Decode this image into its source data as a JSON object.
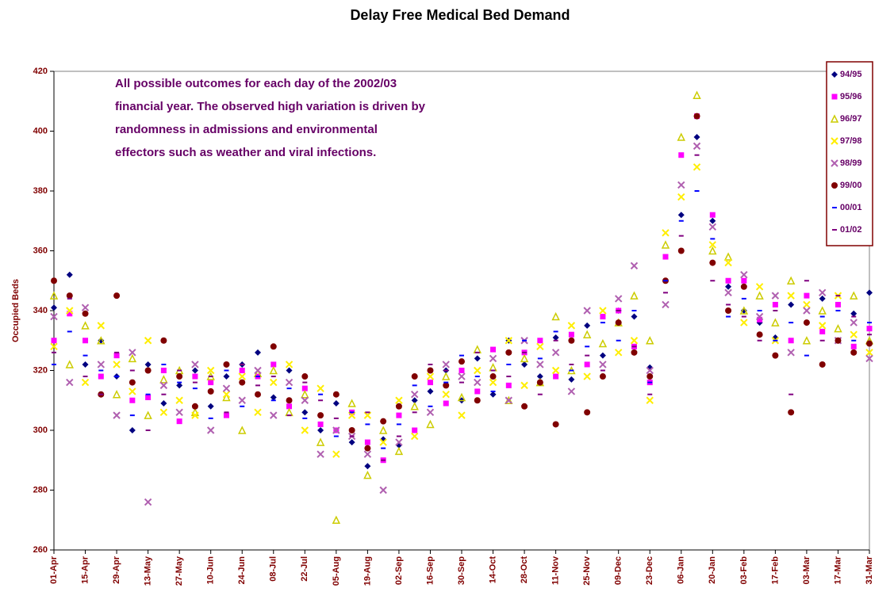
{
  "chart_data": {
    "type": "scatter",
    "title": "Delay Free Medical Bed Demand",
    "y_label": "Occupied Beds",
    "annotation": [
      "All possible outcomes for each day of the 2002/03",
      "financial year. The observed high variation is driven by",
      "randomness in admissions and environmental",
      "effectors such as weather and viral infections."
    ],
    "x": [
      0,
      7,
      14,
      21,
      28,
      35,
      42,
      49,
      56,
      63,
      70,
      77,
      84,
      91,
      98,
      105,
      112,
      119,
      126,
      133,
      140,
      147,
      154,
      161,
      168,
      175,
      182,
      189,
      196,
      203,
      210,
      217,
      224,
      231,
      238,
      245,
      252,
      259,
      266,
      273,
      280,
      287,
      294,
      301,
      308,
      315,
      322,
      329,
      336,
      343,
      350,
      357,
      364
    ],
    "xlim": [
      0,
      364
    ],
    "xticks": [
      {
        "value": 0,
        "label": "01-Apr"
      },
      {
        "value": 14,
        "label": "15-Apr"
      },
      {
        "value": 28,
        "label": "29-Apr"
      },
      {
        "value": 42,
        "label": "13-May"
      },
      {
        "value": 56,
        "label": "27-May"
      },
      {
        "value": 70,
        "label": "10-Jun"
      },
      {
        "value": 84,
        "label": "24-Jun"
      },
      {
        "value": 98,
        "label": "08-Jul"
      },
      {
        "value": 112,
        "label": "22-Jul"
      },
      {
        "value": 126,
        "label": "05-Aug"
      },
      {
        "value": 140,
        "label": "19-Aug"
      },
      {
        "value": 154,
        "label": "02-Sep"
      },
      {
        "value": 168,
        "label": "16-Sep"
      },
      {
        "value": 182,
        "label": "30-Sep"
      },
      {
        "value": 196,
        "label": "14-Oct"
      },
      {
        "value": 210,
        "label": "28-Oct"
      },
      {
        "value": 224,
        "label": "11-Nov"
      },
      {
        "value": 238,
        "label": "25-Nov"
      },
      {
        "value": 252,
        "label": "09-Dec"
      },
      {
        "value": 266,
        "label": "23-Dec"
      },
      {
        "value": 280,
        "label": "06-Jan"
      },
      {
        "value": 294,
        "label": "20-Jan"
      },
      {
        "value": 308,
        "label": "03-Feb"
      },
      {
        "value": 322,
        "label": "17-Feb"
      },
      {
        "value": 336,
        "label": "03-Mar"
      },
      {
        "value": 350,
        "label": "17-Mar"
      },
      {
        "value": 364,
        "label": "31-Mar"
      }
    ],
    "ylim": [
      260,
      420
    ],
    "yticks": [
      260,
      280,
      300,
      320,
      340,
      360,
      380,
      400,
      420
    ],
    "grid": false,
    "legend": "right",
    "series": [
      {
        "name": "94/95",
        "color": "#000080",
        "marker": "diamond",
        "values": [
          341,
          352,
          322,
          330,
          318,
          300,
          322,
          309,
          315,
          320,
          308,
          318,
          322,
          326,
          311,
          320,
          306,
          300,
          309,
          296,
          288,
          297,
          295,
          310,
          313,
          320,
          310,
          324,
          312,
          330,
          322,
          318,
          331,
          317,
          335,
          325,
          340,
          338,
          321,
          350,
          372,
          398,
          370,
          348,
          340,
          336,
          331,
          342,
          336,
          344,
          330,
          339,
          346
        ]
      },
      {
        "name": "95/96",
        "color": "#ff00ff",
        "marker": "square",
        "values": [
          330,
          339,
          330,
          318,
          325,
          310,
          311,
          320,
          303,
          318,
          316,
          305,
          320,
          318,
          322,
          308,
          314,
          302,
          300,
          306,
          296,
          290,
          305,
          300,
          316,
          309,
          320,
          313,
          327,
          315,
          326,
          330,
          318,
          332,
          322,
          338,
          340,
          328,
          316,
          358,
          392,
          405,
          372,
          350,
          350,
          337,
          342,
          330,
          345,
          333,
          342,
          328,
          334
        ]
      },
      {
        "name": "96/97",
        "color": "#cccc00",
        "marker": "triangle",
        "values": [
          345,
          322,
          335,
          330,
          312,
          324,
          305,
          317,
          320,
          306,
          318,
          311,
          300,
          319,
          320,
          306,
          312,
          296,
          270,
          309,
          285,
          300,
          293,
          308,
          302,
          318,
          311,
          327,
          321,
          310,
          324,
          316,
          338,
          320,
          332,
          329,
          336,
          345,
          330,
          362,
          398,
          412,
          360,
          358,
          340,
          345,
          336,
          350,
          330,
          340,
          334,
          345,
          330
        ]
      },
      {
        "name": "97/98",
        "color": "#ffee00",
        "marker": "x",
        "values": [
          328,
          340,
          316,
          335,
          322,
          313,
          330,
          306,
          310,
          305,
          320,
          312,
          318,
          306,
          316,
          322,
          300,
          314,
          292,
          305,
          305,
          296,
          310,
          298,
          318,
          312,
          305,
          320,
          316,
          330,
          315,
          328,
          320,
          335,
          318,
          340,
          326,
          330,
          310,
          366,
          378,
          388,
          362,
          356,
          336,
          348,
          330,
          345,
          342,
          335,
          345,
          332,
          326
        ]
      },
      {
        "name": "98/99",
        "color": "#b060b0",
        "marker": "x",
        "values": [
          338,
          316,
          341,
          322,
          305,
          326,
          276,
          315,
          306,
          322,
          300,
          314,
          310,
          320,
          305,
          316,
          310,
          292,
          300,
          298,
          292,
          280,
          296,
          312,
          306,
          322,
          318,
          316,
          324,
          310,
          330,
          322,
          326,
          313,
          340,
          322,
          344,
          355,
          320,
          342,
          382,
          395,
          368,
          346,
          352,
          338,
          345,
          326,
          340,
          346,
          330,
          336,
          324
        ]
      },
      {
        "name": "99/00",
        "color": "#800000",
        "marker": "circle",
        "values": [
          350,
          345,
          339,
          312,
          345,
          316,
          320,
          330,
          318,
          308,
          313,
          322,
          316,
          312,
          328,
          310,
          318,
          305,
          312,
          300,
          294,
          303,
          308,
          318,
          320,
          315,
          323,
          310,
          318,
          326,
          308,
          316,
          302,
          330,
          306,
          318,
          336,
          326,
          318,
          350,
          360,
          405,
          356,
          340,
          348,
          332,
          325,
          306,
          336,
          322,
          330,
          326,
          329
        ]
      },
      {
        "name": "00/01",
        "color": "#0000ff",
        "marker": "dash",
        "values": [
          322,
          333,
          325,
          320,
          318,
          305,
          312,
          322,
          316,
          314,
          304,
          320,
          308,
          318,
          310,
          314,
          304,
          312,
          298,
          306,
          302,
          294,
          302,
          315,
          308,
          316,
          325,
          318,
          313,
          322,
          330,
          324,
          333,
          320,
          328,
          336,
          330,
          340,
          316,
          350,
          370,
          380,
          364,
          338,
          344,
          340,
          330,
          336,
          325,
          338,
          340,
          330,
          336
        ]
      },
      {
        "name": "01/02",
        "color": "#800080",
        "marker": "dash",
        "values": [
          326,
          344,
          318,
          312,
          326,
          320,
          300,
          312,
          320,
          316,
          318,
          306,
          322,
          315,
          318,
          305,
          316,
          310,
          304,
          298,
          306,
          290,
          298,
          306,
          322,
          320,
          316,
          326,
          320,
          318,
          326,
          312,
          330,
          322,
          325,
          320,
          340,
          328,
          312,
          346,
          365,
          392,
          350,
          342,
          338,
          330,
          340,
          312,
          350,
          330,
          345,
          338,
          332
        ]
      }
    ]
  }
}
